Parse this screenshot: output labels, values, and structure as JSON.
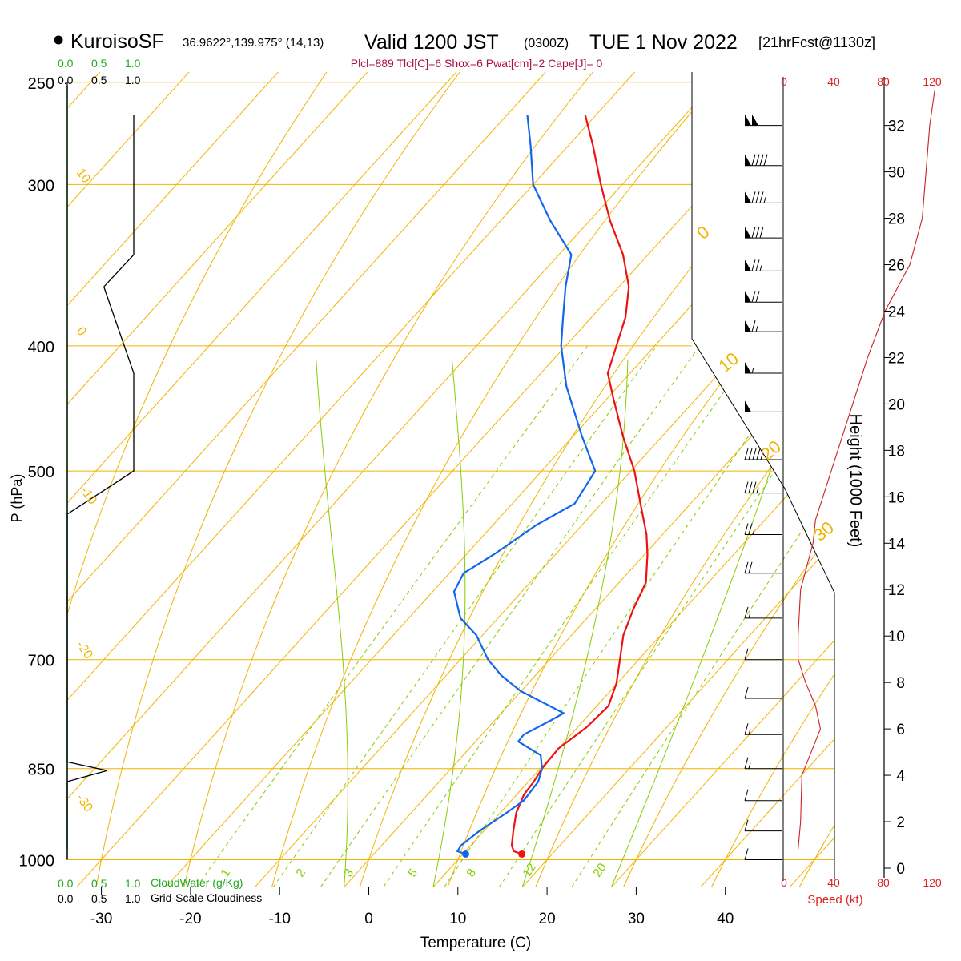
{
  "header": {
    "station": "KuroisoSF",
    "coords": "36.9622°,139.975° (14,13)",
    "valid_label": "Valid 1200 JST",
    "zulu": "(0300Z)",
    "date": "TUE 1 Nov 2022",
    "forecast": "[21hrFcst@1130z]",
    "params": "Plcl=889 Tlcl[C]=6 Shox=6 Pwat[cm]=2 Cape[J]= 0"
  },
  "colors": {
    "temperature": "#ee1111",
    "dewpoint": "#1166ee",
    "isobar_isotherm": "#f0b400",
    "mixing_ratio": "#88cc00",
    "green_axis": "#22aa22",
    "cloud": "#000000",
    "speed": "#dd2222",
    "height": "#cc2222"
  },
  "cloud_scale": {
    "top_water": [
      "0.0",
      "0.5",
      "1.0"
    ],
    "top_cloud": [
      "0.0",
      "0.5",
      "1.0"
    ],
    "bottom_water": [
      "0.0",
      "0.5",
      "1.0"
    ],
    "bottom_cloud": [
      "0.0",
      "0.5",
      "1.0"
    ],
    "water_title": "CloudWater (g/Kg)",
    "cloud_title": "Grid-Scale Cloudiness"
  },
  "speed_scale": {
    "labels": [
      "0",
      "40",
      "80",
      "120"
    ],
    "title": "Speed (kt)"
  },
  "chart_data": {
    "type": "skew-t",
    "xlabel": "Temperature (C)",
    "ylabel": "P (hPa)",
    "y2label": "Height (1000 Feet)",
    "pressure_ticks": [
      "250",
      "300",
      "400",
      "500",
      "700",
      "850",
      "1000"
    ],
    "temperature_ticks": [
      "-30",
      "-20",
      "-10",
      "0",
      "10",
      "20",
      "30",
      "40"
    ],
    "height_ticks": [
      "0",
      "2",
      "4",
      "6",
      "8",
      "10",
      "12",
      "14",
      "16",
      "18",
      "20",
      "22",
      "24",
      "26",
      "28",
      "30",
      "32"
    ],
    "dry_adiabat_labels": [
      "10",
      "0",
      "-10",
      "-20",
      "-30"
    ],
    "moist_adiabat_labels": [
      "0",
      "10",
      "20",
      "30"
    ],
    "mixing_ratio_labels": [
      "1",
      "2",
      "3",
      "5",
      "8",
      "12",
      "20"
    ],
    "temperature_profile": [
      {
        "p": 990,
        "t": 16.6
      },
      {
        "p": 985,
        "t": 15.4
      },
      {
        "p": 975,
        "t": 14.6
      },
      {
        "p": 950,
        "t": 13.3
      },
      {
        "p": 920,
        "t": 11.8
      },
      {
        "p": 890,
        "t": 10.8
      },
      {
        "p": 870,
        "t": 10.6
      },
      {
        "p": 850,
        "t": 10.2
      },
      {
        "p": 820,
        "t": 10.0
      },
      {
        "p": 790,
        "t": 11.0
      },
      {
        "p": 760,
        "t": 11.3
      },
      {
        "p": 730,
        "t": 9.9
      },
      {
        "p": 700,
        "t": 7.9
      },
      {
        "p": 670,
        "t": 5.8
      },
      {
        "p": 640,
        "t": 4.3
      },
      {
        "p": 610,
        "t": 3.0
      },
      {
        "p": 580,
        "t": 0.3
      },
      {
        "p": 560,
        "t": -1.8
      },
      {
        "p": 530,
        "t": -5.6
      },
      {
        "p": 500,
        "t": -9.6
      },
      {
        "p": 470,
        "t": -14.4
      },
      {
        "p": 440,
        "t": -19.2
      },
      {
        "p": 420,
        "t": -22.5
      },
      {
        "p": 400,
        "t": -24.3
      },
      {
        "p": 380,
        "t": -26.2
      },
      {
        "p": 360,
        "t": -28.9
      },
      {
        "p": 340,
        "t": -32.8
      },
      {
        "p": 320,
        "t": -37.7
      },
      {
        "p": 300,
        "t": -42.4
      },
      {
        "p": 280,
        "t": -47.2
      },
      {
        "p": 265,
        "t": -51.2
      }
    ],
    "dewpoint_profile": [
      {
        "p": 990,
        "t": 10.3
      },
      {
        "p": 985,
        "t": 9.1
      },
      {
        "p": 975,
        "t": 8.9
      },
      {
        "p": 950,
        "t": 9.5
      },
      {
        "p": 920,
        "t": 10.7
      },
      {
        "p": 900,
        "t": 11.4
      },
      {
        "p": 870,
        "t": 11.1
      },
      {
        "p": 850,
        "t": 10.2
      },
      {
        "p": 830,
        "t": 8.7
      },
      {
        "p": 810,
        "t": 4.8
      },
      {
        "p": 800,
        "t": 4.7
      },
      {
        "p": 780,
        "t": 6.3
      },
      {
        "p": 770,
        "t": 7.0
      },
      {
        "p": 740,
        "t": -0.1
      },
      {
        "p": 720,
        "t": -3.8
      },
      {
        "p": 700,
        "t": -6.9
      },
      {
        "p": 670,
        "t": -10.7
      },
      {
        "p": 650,
        "t": -14.2
      },
      {
        "p": 620,
        "t": -17.6
      },
      {
        "p": 600,
        "t": -18.4
      },
      {
        "p": 580,
        "t": -16.9
      },
      {
        "p": 550,
        "t": -15.1
      },
      {
        "p": 530,
        "t": -13.0
      },
      {
        "p": 500,
        "t": -14.0
      },
      {
        "p": 470,
        "t": -19.0
      },
      {
        "p": 430,
        "t": -25.8
      },
      {
        "p": 400,
        "t": -30.5
      },
      {
        "p": 380,
        "t": -33.2
      },
      {
        "p": 360,
        "t": -36.0
      },
      {
        "p": 340,
        "t": -38.6
      },
      {
        "p": 320,
        "t": -44.4
      },
      {
        "p": 300,
        "t": -50.0
      },
      {
        "p": 280,
        "t": -54.2
      },
      {
        "p": 265,
        "t": -57.7
      }
    ],
    "surface_temperature": {
      "p": 990,
      "t": 16.6
    },
    "surface_dewpoint": {
      "p": 990,
      "t": 10.3
    },
    "cloud_water_profile": [
      {
        "p": 1000,
        "v": 0.0
      },
      {
        "p": 870,
        "v": 0.0
      },
      {
        "p": 853,
        "v": 0.6
      },
      {
        "p": 840,
        "v": 0.0
      },
      {
        "p": 250,
        "v": 0.0
      }
    ],
    "cloudiness_profile": [
      {
        "p": 1000,
        "v": 0.0
      },
      {
        "p": 540,
        "v": 0.0
      },
      {
        "p": 500,
        "v": 1.0
      },
      {
        "p": 420,
        "v": 1.0
      },
      {
        "p": 360,
        "v": 0.55
      },
      {
        "p": 340,
        "v": 1.0
      },
      {
        "p": 265,
        "v": 1.0
      }
    ],
    "wind_speed_profile": [
      {
        "h": 0.8,
        "s": 12
      },
      {
        "h": 2.0,
        "s": 14
      },
      {
        "h": 4.0,
        "s": 15
      },
      {
        "h": 6.0,
        "s": 30
      },
      {
        "h": 7.0,
        "s": 26
      },
      {
        "h": 8.0,
        "s": 18
      },
      {
        "h": 9.0,
        "s": 12
      },
      {
        "h": 10.0,
        "s": 12
      },
      {
        "h": 12.0,
        "s": 14
      },
      {
        "h": 14.0,
        "s": 24
      },
      {
        "h": 15.0,
        "s": 26
      },
      {
        "h": 16.0,
        "s": 32
      },
      {
        "h": 18.0,
        "s": 44
      },
      {
        "h": 20.0,
        "s": 56
      },
      {
        "h": 22.0,
        "s": 68
      },
      {
        "h": 24.0,
        "s": 82
      },
      {
        "h": 26.0,
        "s": 102
      },
      {
        "h": 28.0,
        "s": 112
      },
      {
        "h": 30.0,
        "s": 115
      },
      {
        "h": 32.0,
        "s": 118
      },
      {
        "h": 33.5,
        "s": 122
      }
    ],
    "wind_barbs": [
      {
        "p": 270,
        "s": 100
      },
      {
        "p": 290,
        "s": 90
      },
      {
        "p": 310,
        "s": 85
      },
      {
        "p": 330,
        "s": 80
      },
      {
        "p": 350,
        "s": 75
      },
      {
        "p": 370,
        "s": 70
      },
      {
        "p": 390,
        "s": 65
      },
      {
        "p": 420,
        "s": 55
      },
      {
        "p": 450,
        "s": 50
      },
      {
        "p": 490,
        "s": 45
      },
      {
        "p": 520,
        "s": 35
      },
      {
        "p": 560,
        "s": 25
      },
      {
        "p": 600,
        "s": 20
      },
      {
        "p": 650,
        "s": 15
      },
      {
        "p": 700,
        "s": 12
      },
      {
        "p": 750,
        "s": 12
      },
      {
        "p": 800,
        "s": 15
      },
      {
        "p": 850,
        "s": 15
      },
      {
        "p": 900,
        "s": 12
      },
      {
        "p": 950,
        "s": 10
      },
      {
        "p": 1000,
        "s": 10
      }
    ]
  }
}
